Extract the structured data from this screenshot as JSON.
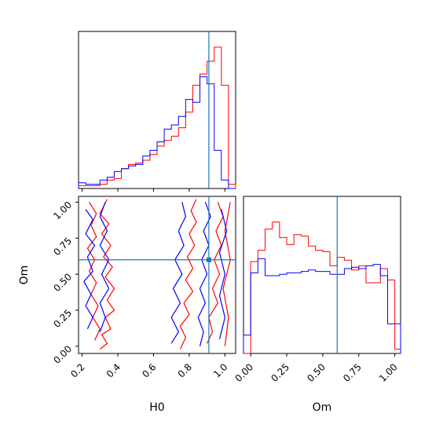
{
  "chart_data": {
    "type": "corner",
    "parameters": [
      "H0",
      "Om"
    ],
    "colors": {
      "series1": "#ff0000",
      "series2": "#0000ff",
      "truth": "#1f77b4"
    },
    "truth": {
      "H0": 0.91,
      "Om": 0.6
    },
    "panels": [
      {
        "id": "hist-H0",
        "type": "histogram",
        "x_range": [
          0.18,
          1.06
        ],
        "x_ticks": [
          0.2,
          0.4,
          0.6,
          0.8,
          1.0
        ],
        "x_ticklabels_shown": false,
        "y_ticklabels_shown": false,
        "bins": [
          0.18,
          0.22,
          0.26,
          0.3,
          0.34,
          0.38,
          0.42,
          0.46,
          0.5,
          0.54,
          0.58,
          0.62,
          0.66,
          0.7,
          0.74,
          0.78,
          0.82,
          0.86,
          0.9,
          0.94,
          0.98,
          1.02,
          1.06
        ],
        "series": [
          {
            "key": "series1",
            "values": [
              0.02,
              0.02,
              0.02,
              0.03,
              0.06,
              0.07,
              0.14,
              0.17,
              0.18,
              0.2,
              0.24,
              0.3,
              0.34,
              0.37,
              0.43,
              0.54,
              0.73,
              0.81,
              0.9,
              1.0,
              0.73,
              0.03
            ]
          },
          {
            "key": "series2",
            "values": [
              0.04,
              0.03,
              0.03,
              0.06,
              0.08,
              0.12,
              0.14,
              0.16,
              0.17,
              0.23,
              0.27,
              0.33,
              0.42,
              0.45,
              0.51,
              0.63,
              0.61,
              0.79,
              0.74,
              0.27,
              0.06,
              0.0
            ]
          }
        ]
      },
      {
        "id": "contour-H0-Om",
        "type": "contour",
        "x_range": [
          0.18,
          1.06
        ],
        "y_range": [
          -0.05,
          1.04
        ],
        "x_ticks": [
          "0.2",
          "0.4",
          "0.6",
          "0.8",
          "1.0"
        ],
        "y_ticks": [
          "0.00",
          "0.25",
          "0.50",
          "0.75",
          "1.00"
        ],
        "xlabel": "H0",
        "ylabel": "Om",
        "contour_levels": 2,
        "series": [
          {
            "key": "series1",
            "description_points": [
              {
                "x": 0.3,
                "y": 0.0
              },
              {
                "x": 0.35,
                "y": 0.25
              },
              {
                "x": 0.3,
                "y": 0.5
              },
              {
                "x": 0.33,
                "y": 0.75
              },
              {
                "x": 0.3,
                "y": 1.0
              },
              {
                "x": 0.75,
                "y": 0.1
              },
              {
                "x": 0.8,
                "y": 0.4
              },
              {
                "x": 0.78,
                "y": 0.7
              },
              {
                "x": 0.82,
                "y": 1.0
              },
              {
                "x": 0.95,
                "y": 0.05
              },
              {
                "x": 1.0,
                "y": 0.5
              },
              {
                "x": 0.97,
                "y": 0.95
              }
            ]
          },
          {
            "key": "series2",
            "description_points": [
              {
                "x": 0.25,
                "y": 0.2
              },
              {
                "x": 0.22,
                "y": 0.45
              },
              {
                "x": 0.3,
                "y": 0.7
              },
              {
                "x": 0.25,
                "y": 0.9
              },
              {
                "x": 0.7,
                "y": 0.1
              },
              {
                "x": 0.73,
                "y": 0.4
              },
              {
                "x": 0.76,
                "y": 0.7
              },
              {
                "x": 0.8,
                "y": 0.95
              },
              {
                "x": 0.98,
                "y": 0.15
              },
              {
                "x": 0.95,
                "y": 0.5
              },
              {
                "x": 1.02,
                "y": 0.85
              }
            ]
          }
        ]
      },
      {
        "id": "hist-Om",
        "type": "histogram",
        "x_range": [
          -0.05,
          1.04
        ],
        "x_ticks": [
          "0.00",
          "0.25",
          "0.50",
          "0.75",
          "1.00"
        ],
        "xlabel": "Om",
        "y_ticklabels_shown": false,
        "bins": [
          -0.05,
          0.0,
          0.05,
          0.1,
          0.15,
          0.2,
          0.25,
          0.3,
          0.35,
          0.4,
          0.45,
          0.5,
          0.55,
          0.6,
          0.65,
          0.7,
          0.75,
          0.8,
          0.85,
          0.9,
          0.95,
          1.0,
          1.04
        ],
        "series": [
          {
            "key": "series1",
            "values": [
              0.0,
              0.65,
              0.73,
              0.88,
              0.93,
              0.82,
              0.77,
              0.84,
              0.83,
              0.76,
              0.73,
              0.72,
              0.62,
              0.68,
              0.66,
              0.59,
              0.62,
              0.5,
              0.5,
              0.6,
              0.52,
              0.03
            ]
          },
          {
            "key": "series2",
            "values": [
              0.13,
              0.57,
              0.67,
              0.55,
              0.55,
              0.56,
              0.57,
              0.57,
              0.58,
              0.59,
              0.58,
              0.58,
              0.56,
              0.56,
              0.6,
              0.61,
              0.6,
              0.62,
              0.63,
              0.55,
              0.21,
              0.21
            ]
          }
        ]
      }
    ]
  }
}
